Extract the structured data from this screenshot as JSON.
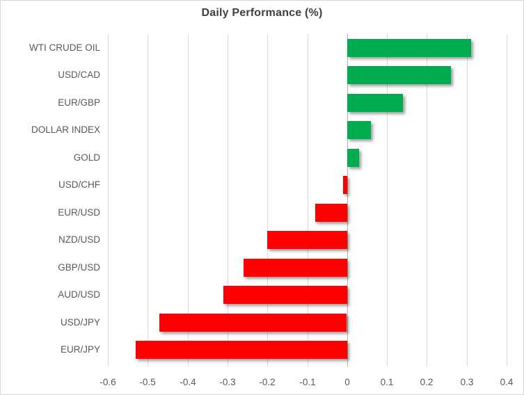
{
  "chart_data": {
    "type": "bar",
    "orientation": "horizontal",
    "title": "Daily Performance (%)",
    "categories": [
      "WTI CRUDE OIL",
      "USD/CAD",
      "EUR/GBP",
      "DOLLAR INDEX",
      "GOLD",
      "USD/CHF",
      "EUR/USD",
      "NZD/USD",
      "GBP/USD",
      "AUD/USD",
      "USD/JPY",
      "EUR/JPY"
    ],
    "values": [
      0.31,
      0.26,
      0.14,
      0.06,
      0.03,
      -0.01,
      -0.08,
      -0.2,
      -0.26,
      -0.31,
      -0.47,
      -0.53
    ],
    "xlim": [
      -0.6,
      0.4
    ],
    "x_ticks": [
      -0.6,
      -0.5,
      -0.4,
      -0.3,
      -0.2,
      -0.1,
      0,
      0.1,
      0.2,
      0.3,
      0.4
    ],
    "x_tick_labels": [
      "-0.6",
      "-0.5",
      "-0.4",
      "-0.3",
      "-0.2",
      "-0.1",
      "0",
      "0.1",
      "0.2",
      "0.3",
      "0.4"
    ],
    "grid": "vertical",
    "legend": "none",
    "xlabel": "",
    "ylabel": "",
    "colors": {
      "positive_bar": "#00AC50",
      "negative_bar": "#FF0000",
      "gridline": "#DADADA",
      "zero_line": "#B3B3B3",
      "title_text": "#3F3F3F",
      "label_text": "#595959",
      "background": "#FFFFFF",
      "frame_border": "#D7D7D7"
    }
  }
}
